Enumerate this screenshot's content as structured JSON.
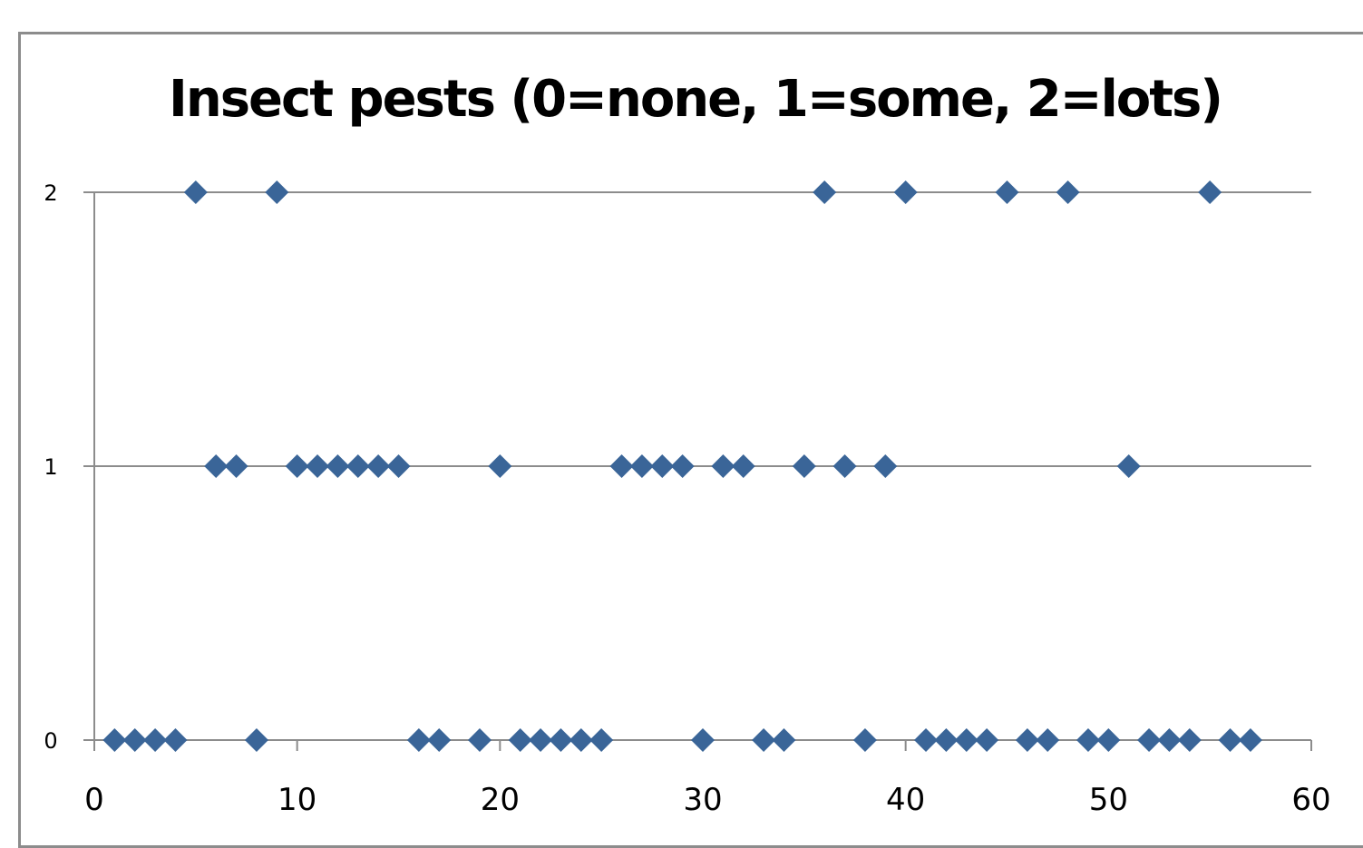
{
  "chart_data": {
    "type": "scatter",
    "title": "Insect pests (0=none, 1=some, 2=lots)",
    "xlabel": "",
    "ylabel": "",
    "xlim": [
      0,
      60
    ],
    "ylim": [
      0,
      2
    ],
    "x_ticks": [
      "0",
      "10",
      "20",
      "30",
      "40",
      "50",
      "60"
    ],
    "y_ticks": [
      "0",
      "1",
      "2"
    ],
    "grid": "horizontal",
    "legend": "none",
    "marker": "diamond",
    "marker_color": "#3a6598",
    "x": [
      1,
      2,
      3,
      4,
      5,
      6,
      7,
      8,
      9,
      10,
      11,
      12,
      13,
      14,
      15,
      16,
      17,
      19,
      20,
      21,
      22,
      23,
      24,
      25,
      26,
      27,
      28,
      29,
      30,
      31,
      32,
      33,
      34,
      35,
      36,
      37,
      38,
      39,
      40,
      41,
      42,
      43,
      44,
      45,
      46,
      47,
      48,
      49,
      50,
      51,
      52,
      53,
      54,
      55,
      56,
      57
    ],
    "y": [
      0,
      0,
      0,
      0,
      2,
      1,
      1,
      0,
      2,
      1,
      1,
      1,
      1,
      1,
      1,
      0,
      0,
      0,
      1,
      0,
      0,
      0,
      0,
      0,
      1,
      1,
      1,
      1,
      0,
      1,
      1,
      0,
      0,
      1,
      2,
      1,
      0,
      1,
      2,
      0,
      0,
      0,
      0,
      2,
      0,
      0,
      2,
      0,
      0,
      1,
      0,
      0,
      0,
      2,
      0,
      0
    ]
  }
}
